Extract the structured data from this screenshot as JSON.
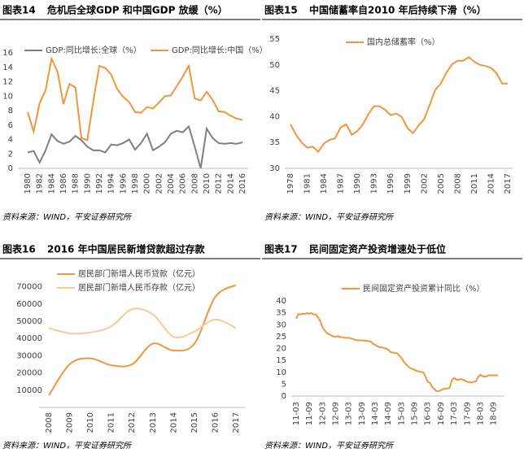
{
  "chart_data": [
    {
      "type": "line",
      "figure": "图表14",
      "title": "危机后全球GDP 和中国GDP 放缓（%）",
      "source": "资料来源：WIND，平安证券研究所",
      "x": [
        1980,
        1981,
        1982,
        1983,
        1984,
        1985,
        1986,
        1987,
        1988,
        1989,
        1990,
        1991,
        1992,
        1993,
        1994,
        1995,
        1996,
        1997,
        1998,
        1999,
        2000,
        2001,
        2002,
        2003,
        2004,
        2005,
        2006,
        2007,
        2008,
        2009,
        2010,
        2011,
        2012,
        2013,
        2014,
        2015,
        2016
      ],
      "xlim": [
        1980,
        2016
      ],
      "xticks": [
        1980,
        1982,
        1984,
        1986,
        1988,
        1990,
        1992,
        1994,
        1996,
        1998,
        2000,
        2002,
        2004,
        2006,
        2008,
        2010,
        2012,
        2014,
        2016
      ],
      "ylim": [
        0,
        16
      ],
      "yticks": [
        0,
        2,
        4,
        6,
        8,
        10,
        12,
        14,
        16
      ],
      "series": [
        {
          "name": "GDP:同比增长:全球（%）",
          "color": "#7f7f7f",
          "values": [
            2.2,
            2.4,
            0.8,
            2.5,
            4.7,
            3.8,
            3.4,
            3.7,
            4.5,
            3.9,
            3.0,
            2.5,
            2.5,
            2.2,
            3.3,
            3.2,
            3.5,
            4.0,
            2.6,
            3.5,
            4.8,
            2.5,
            3.0,
            3.6,
            4.8,
            5.2,
            5.0,
            5.8,
            3.0,
            0,
            5.5,
            4.2,
            3.5,
            3.4,
            3.5,
            3.4,
            3.6
          ]
        },
        {
          "name": "GDP:同比增长:中国（%）",
          "color": "#f0963c",
          "values": [
            7.8,
            5.1,
            9.0,
            10.8,
            15.2,
            13.4,
            8.9,
            11.7,
            11.2,
            4.2,
            3.9,
            9.3,
            14.2,
            13.9,
            13.0,
            11.0,
            9.9,
            9.2,
            7.8,
            7.7,
            8.5,
            8.3,
            9.1,
            10.0,
            10.1,
            11.4,
            12.7,
            14.2,
            9.7,
            9.4,
            10.6,
            9.5,
            7.9,
            7.8,
            7.3,
            6.9,
            6.7
          ]
        }
      ]
    },
    {
      "type": "line",
      "figure": "图表15",
      "title": "中国储蓄率自2010 年后持续下滑（%）",
      "source": "资料来源：WIND，平安证券研究所",
      "x": [
        1978,
        1979,
        1980,
        1981,
        1982,
        1983,
        1984,
        1985,
        1986,
        1987,
        1988,
        1989,
        1990,
        1991,
        1992,
        1993,
        1994,
        1995,
        1996,
        1997,
        1998,
        1999,
        2000,
        2001,
        2002,
        2003,
        2004,
        2005,
        2006,
        2007,
        2008,
        2009,
        2010,
        2011,
        2012,
        2013,
        2014,
        2015,
        2016,
        2017
      ],
      "xlim": [
        1978,
        2017
      ],
      "xticks": [
        1978,
        1981,
        1984,
        1987,
        1990,
        1993,
        1996,
        1999,
        2002,
        2005,
        2008,
        2011,
        2014,
        2017
      ],
      "ylim": [
        30,
        55
      ],
      "yticks": [
        30,
        35,
        40,
        45,
        50,
        55
      ],
      "series": [
        {
          "name": "国内总储蓄率（%）",
          "color": "#f0963c",
          "values": [
            38.5,
            36.5,
            35,
            34,
            34.2,
            33.2,
            34.8,
            35.5,
            35.8,
            37.9,
            38.5,
            36.5,
            37.2,
            38.5,
            40.5,
            42,
            42,
            41.3,
            40.3,
            40.6,
            39.9,
            37.8,
            36.8,
            38.3,
            39.5,
            42.3,
            45.2,
            46.4,
            48.5,
            50.1,
            50.8,
            50.8,
            51.5,
            50.6,
            50.0,
            49.8,
            49.4,
            48.4,
            46.4,
            46.4
          ]
        }
      ]
    },
    {
      "type": "line",
      "figure": "图表16",
      "title": "2016 年中国居民新增贷款超过存款",
      "source": "资料来源：WIND，平安证券研究所",
      "smooth": true,
      "x": [
        2008,
        2009,
        2010,
        2011,
        2012,
        2013,
        2014,
        2015,
        2016,
        2017
      ],
      "xlim": [
        2008,
        2017
      ],
      "xticks": [
        2008,
        2009,
        2010,
        2011,
        2012,
        2013,
        2014,
        2015,
        2016,
        2017
      ],
      "ylim": [
        0,
        75000
      ],
      "yticks": [
        10000,
        20000,
        30000,
        40000,
        50000,
        60000,
        70000
      ],
      "series": [
        {
          "name": "居民部门新增人民币贷款（亿元）",
          "color": "#f0963c",
          "values": [
            7000,
            25000,
            28500,
            24500,
            25000,
            37000,
            33000,
            37000,
            64000,
            71000
          ]
        },
        {
          "name": "居民部门新增人民币存款（亿元）",
          "color": "#f9c89b",
          "values": [
            46000,
            43000,
            43500,
            47000,
            57000,
            54000,
            41000,
            44000,
            51000,
            46000
          ]
        }
      ]
    },
    {
      "type": "line",
      "figure": "图表17",
      "title": "民间固定资产投资增速处于低位",
      "source": "资料来源：WIND，平安证券研究所",
      "categories": [
        "11-03",
        null,
        null,
        null,
        null,
        null,
        "11-09",
        null,
        null,
        null,
        null,
        null,
        "12-03",
        null,
        null,
        null,
        null,
        null,
        "12-09",
        null,
        null,
        null,
        null,
        null,
        "13-03",
        null,
        null,
        null,
        null,
        null,
        "13-09",
        null,
        null,
        null,
        null,
        null,
        "14-03",
        null,
        null,
        null,
        null,
        null,
        "14-09",
        null,
        null,
        null,
        null,
        null,
        "15-03",
        null,
        null,
        null,
        null,
        null,
        "15-09",
        null,
        null,
        null,
        null,
        null,
        "16-03",
        null,
        null,
        null,
        null,
        null,
        "16-09",
        null,
        null,
        null,
        null,
        null,
        "17-03",
        null,
        null,
        null,
        null,
        null,
        "17-09",
        null,
        null,
        null,
        null,
        null,
        "18-03",
        null,
        null,
        null,
        null,
        null,
        "18-09",
        null,
        null
      ],
      "ylim": [
        0,
        40
      ],
      "yticks": [
        0,
        5,
        10,
        15,
        20,
        25,
        30,
        35,
        40
      ],
      "series": [
        {
          "name": "民间固定资产投资累计同比（%）",
          "color": "#f0963c",
          "values": [
            32.5,
            34.5,
            34.3,
            34.6,
            34.5,
            34.9,
            34.6,
            34.9,
            34.3,
            34.3,
            33,
            31.5,
            29,
            27.5,
            26.5,
            26,
            25.5,
            25,
            25,
            25.2,
            24.8,
            24.8,
            24.5,
            24.5,
            24.5,
            24.2,
            24,
            23.5,
            23.5,
            23.4,
            23.4,
            23.3,
            23.2,
            23.1,
            23,
            22,
            21.5,
            21,
            20.5,
            20.5,
            20.2,
            20,
            19.5,
            18.5,
            18.3,
            18.1,
            18,
            17,
            16,
            14.5,
            13.5,
            12.5,
            11.8,
            11.4,
            11,
            10.5,
            10.4,
            10.1,
            10,
            8,
            6,
            5.5,
            3.9,
            2.8,
            2.1,
            2.1,
            2.5,
            2.9,
            3.1,
            3.2,
            3.5,
            6.7,
            7.7,
            6.9,
            6.8,
            7.2,
            6.9,
            6.4,
            6.0,
            5.8,
            5.7,
            6.0,
            6.2,
            8.1,
            8.9,
            8.4,
            8.1,
            8.4,
            8.8,
            8.7,
            8.7,
            8.7,
            8.7
          ]
        }
      ]
    }
  ]
}
